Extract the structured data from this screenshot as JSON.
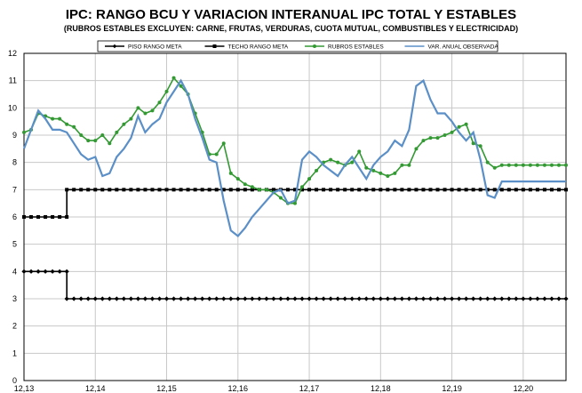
{
  "chart_data": {
    "type": "line",
    "title": "IPC: RANGO BCU Y VARIACION INTERANUAL IPC TOTAL Y ESTABLES",
    "subtitle": "(RUBROS ESTABLES EXCLUYEN: CARNE, FRUTAS, VERDURAS, CUOTA MUTUAL, COMBUSTIBLES Y ELECTRICIDAD)",
    "x_ticks": [
      "12,13",
      "12,14",
      "12,15",
      "12,16",
      "12,17",
      "12,18",
      "12,19",
      "12,20"
    ],
    "y_ticks": [
      "0",
      "1",
      "2",
      "3",
      "4",
      "5",
      "6",
      "7",
      "8",
      "9",
      "10",
      "11",
      "12"
    ],
    "ylim": [
      0,
      12
    ],
    "grid": true,
    "legend_position": "top",
    "series": [
      {
        "name": "PISO RANGO META",
        "color": "#000000",
        "marker": "diamond",
        "x": [
          0,
          6,
          6,
          76
        ],
        "y": [
          4,
          4,
          3,
          3
        ]
      },
      {
        "name": "TECHO RANGO META",
        "color": "#000000",
        "marker": "square",
        "x": [
          0,
          6,
          6,
          76
        ],
        "y": [
          6,
          6,
          7,
          7
        ]
      },
      {
        "name": "RUBROS ESTABLES",
        "color": "#339933",
        "marker": "circle",
        "x": [
          0,
          1,
          2,
          3,
          4,
          5,
          6,
          7,
          8,
          9,
          10,
          11,
          12,
          13,
          14,
          15,
          16,
          17,
          18,
          19,
          20,
          21,
          22,
          23,
          24,
          25,
          26,
          27,
          28,
          29,
          30,
          31,
          32,
          33,
          34,
          35,
          36,
          37,
          38,
          39,
          40,
          41,
          42,
          43,
          44,
          45,
          46,
          47,
          48,
          49,
          50,
          51,
          52,
          53,
          54,
          55,
          56,
          57,
          58,
          59,
          60,
          61,
          62,
          63,
          64,
          65,
          66,
          67,
          68,
          69,
          70,
          71,
          72,
          73,
          74,
          75,
          76
        ],
        "y": [
          9.1,
          9.2,
          9.8,
          9.7,
          9.6,
          9.6,
          9.4,
          9.3,
          9.0,
          8.8,
          8.8,
          9.0,
          8.7,
          9.1,
          9.4,
          9.6,
          10.0,
          9.8,
          9.9,
          10.2,
          10.6,
          11.1,
          10.8,
          10.5,
          9.8,
          9.1,
          8.3,
          8.3,
          8.7,
          7.6,
          7.4,
          7.2,
          7.1,
          7.0,
          7.0,
          6.9,
          6.7,
          6.5,
          6.5,
          7.1,
          7.4,
          7.7,
          8.0,
          8.1,
          8.0,
          7.9,
          8.0,
          8.4,
          7.8,
          7.7,
          7.6,
          7.5,
          7.6,
          7.9,
          7.9,
          8.5,
          8.8,
          8.9,
          8.9,
          9.0,
          9.1,
          9.3,
          9.4,
          8.7,
          8.6,
          8.0,
          7.8,
          7.9,
          7.9,
          7.9,
          7.9,
          7.9,
          7.9,
          7.9,
          7.9,
          7.9,
          7.9
        ]
      },
      {
        "name": "VAR. ANUAL OBSERVADA",
        "color": "#5b8fc7",
        "marker": "none",
        "x": [
          0,
          1,
          2,
          3,
          4,
          5,
          6,
          7,
          8,
          9,
          10,
          11,
          12,
          13,
          14,
          15,
          16,
          17,
          18,
          19,
          20,
          21,
          22,
          23,
          24,
          25,
          26,
          27,
          28,
          29,
          30,
          31,
          32,
          33,
          34,
          35,
          36,
          37,
          38,
          39,
          40,
          41,
          42,
          43,
          44,
          45,
          46,
          47,
          48,
          49,
          50,
          51,
          52,
          53,
          54,
          55,
          56,
          57,
          58,
          59,
          60,
          61,
          62,
          63,
          64,
          65,
          66,
          67,
          68,
          69,
          70,
          71,
          72,
          73,
          74,
          75,
          76
        ],
        "y": [
          8.5,
          9.2,
          9.9,
          9.6,
          9.2,
          9.2,
          9.1,
          8.7,
          8.3,
          8.1,
          8.2,
          7.5,
          7.6,
          8.2,
          8.5,
          8.9,
          9.7,
          9.1,
          9.4,
          9.6,
          10.2,
          10.6,
          11.0,
          10.5,
          9.6,
          8.9,
          8.1,
          8.0,
          6.6,
          5.5,
          5.3,
          5.6,
          6.0,
          6.3,
          6.6,
          6.9,
          7.0,
          6.5,
          6.6,
          8.1,
          8.4,
          8.2,
          7.9,
          7.7,
          7.5,
          7.9,
          8.2,
          7.8,
          7.4,
          7.9,
          8.2,
          8.4,
          8.8,
          8.6,
          9.2,
          10.8,
          11.0,
          10.3,
          9.8,
          9.8,
          9.5,
          9.1,
          8.8,
          9.1,
          8.1,
          6.8,
          6.7,
          7.3,
          7.3,
          7.3,
          7.3,
          7.3,
          7.3,
          7.3,
          7.3,
          7.3,
          7.3
        ]
      }
    ]
  }
}
